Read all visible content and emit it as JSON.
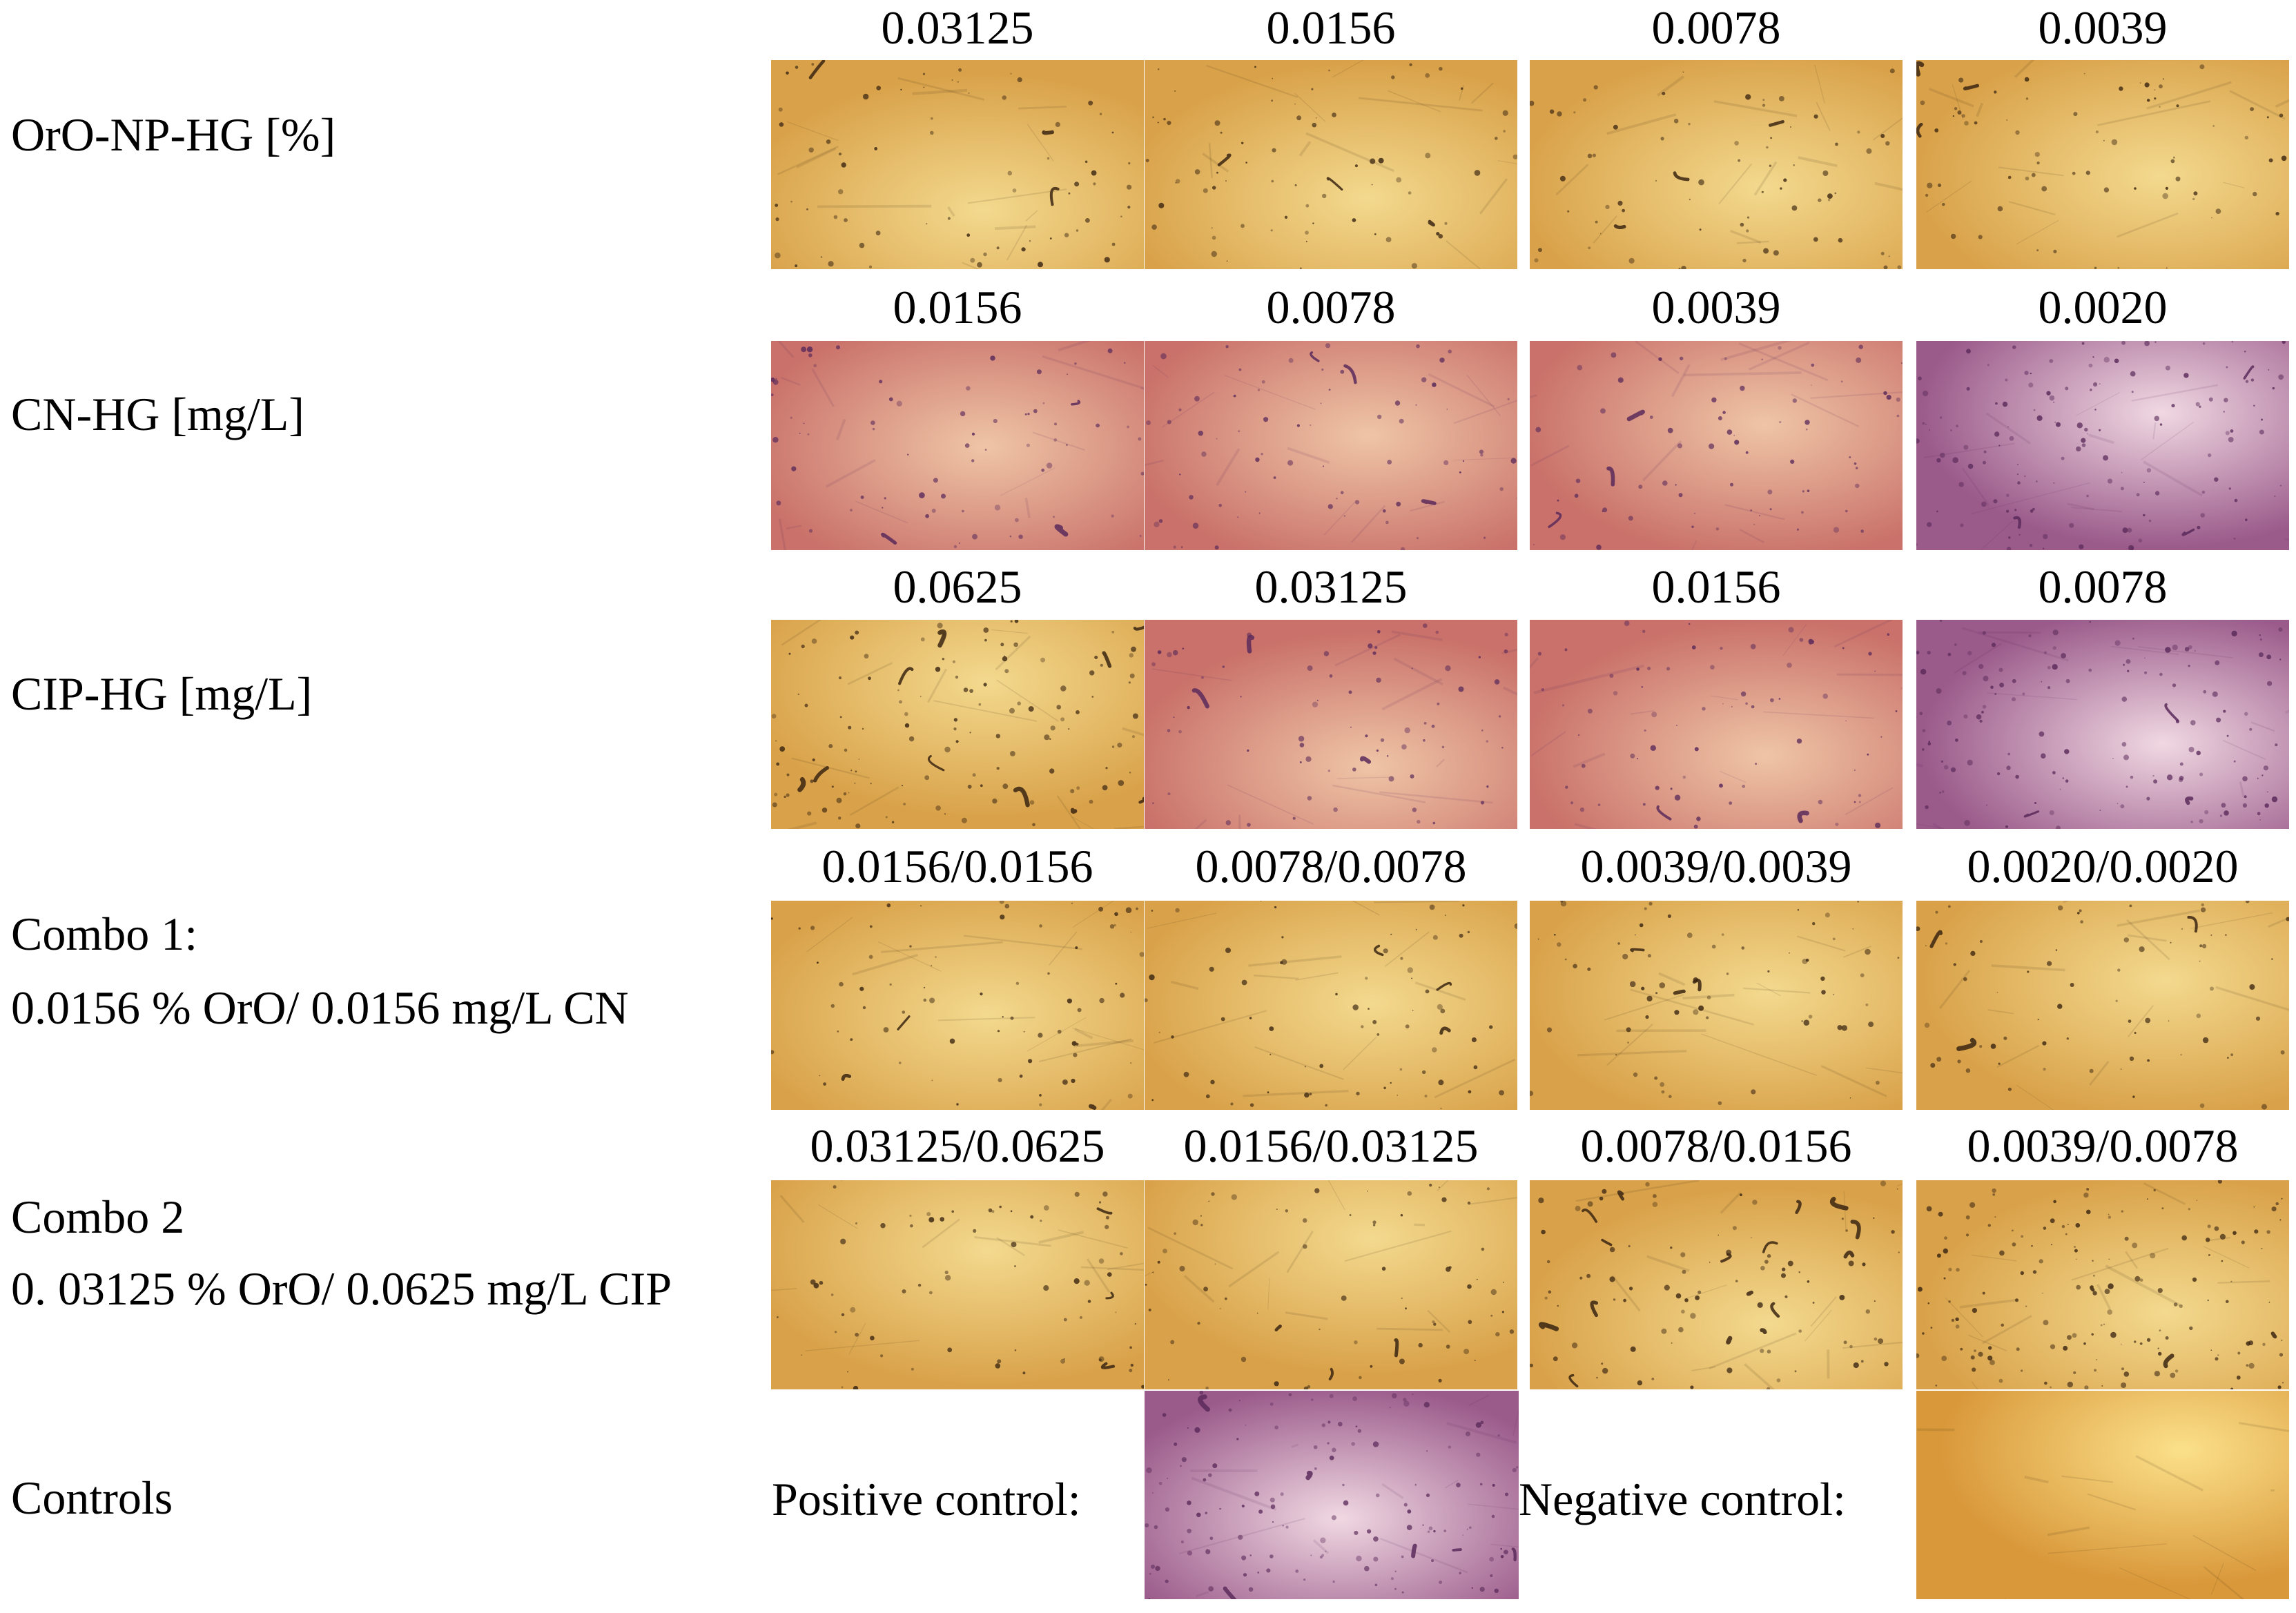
{
  "rows": [
    {
      "label_lines": [
        "OrO-NP-HG [%]"
      ],
      "concentrations": [
        "0.03125",
        "0.0156",
        "0.0078",
        "0.0039"
      ],
      "tone": "gold"
    },
    {
      "label_lines": [
        "CN-HG [mg/L]"
      ],
      "concentrations": [
        "0.0156",
        "0.0078",
        "0.0039",
        "0.0020"
      ],
      "tone": "pink"
    },
    {
      "label_lines": [
        "CIP-HG [mg/L]"
      ],
      "concentrations": [
        "0.0625",
        "0.03125",
        "0.0156",
        "0.0078"
      ],
      "tone": "mixed"
    },
    {
      "label_lines": [
        "Combo 1:",
        "0.0156 % OrO/ 0.0156 mg/L CN"
      ],
      "concentrations": [
        "0.0156/0.0156",
        "0.0078/0.0078",
        "0.0039/0.0039",
        "0.0020/0.0020"
      ],
      "tone": "gold"
    },
    {
      "label_lines": [
        "Combo 2",
        "0. 03125 % OrO/ 0.0625 mg/L CIP"
      ],
      "concentrations": [
        "0.03125/0.0625",
        "0.0156/0.03125",
        "0.0078/0.0156",
        "0.0039/0.0078"
      ],
      "tone": "gold"
    }
  ],
  "controls": {
    "label": "Controls",
    "positive_label": "Positive control:",
    "negative_label": "Negative control:"
  },
  "colors": {
    "gold_base": "#d9a24a",
    "gold_light": "#f3d98e",
    "pink_base": "#c9716a",
    "pink_light": "#efc5a6",
    "purple_dark": "#5a2a5a",
    "speck_dark": "#3b2612"
  }
}
